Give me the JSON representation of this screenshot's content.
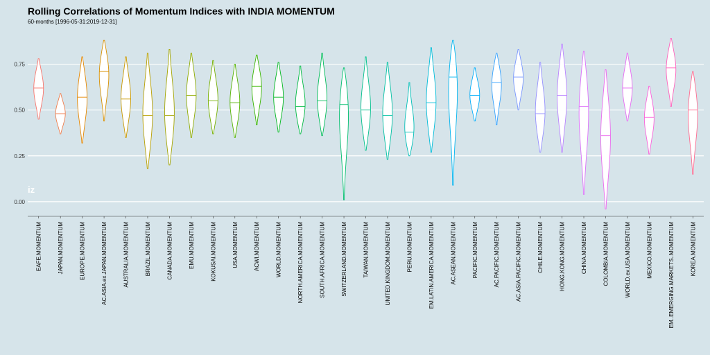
{
  "chart_data": {
    "type": "violin",
    "title": "Rolling Correlations of Momentum Indices with INDIA MOMENTUM",
    "subtitle": "60-months [1996-05-31:2019-12-31]",
    "watermark": "iz",
    "ylim": [
      -0.08,
      0.93
    ],
    "yticks": [
      0.0,
      0.25,
      0.5,
      0.75
    ],
    "ytick_labels": [
      "0.00",
      "0.25",
      "0.50",
      "0.75"
    ],
    "grid": true,
    "series": [
      {
        "name": "EAFE.MOMENTUM",
        "min": 0.45,
        "max": 0.78,
        "median": 0.62,
        "color": "#F8766D"
      },
      {
        "name": "JAPAN.MOMENTUM",
        "min": 0.37,
        "max": 0.59,
        "median": 0.48,
        "color": "#F07E4D"
      },
      {
        "name": "EUROPE.MOMENTUM",
        "min": 0.32,
        "max": 0.79,
        "median": 0.57,
        "color": "#E58700"
      },
      {
        "name": "AC.ASIA.ex.JAPAN.MOMENTUM",
        "min": 0.44,
        "max": 0.88,
        "median": 0.71,
        "color": "#D89000"
      },
      {
        "name": "AUSTRALIA.MOMENTUM",
        "min": 0.35,
        "max": 0.79,
        "median": 0.56,
        "color": "#C99800"
      },
      {
        "name": "BRAZIL.MOMENTUM",
        "min": 0.18,
        "max": 0.81,
        "median": 0.47,
        "color": "#B79F00"
      },
      {
        "name": "CANADA.MOMENTUM",
        "min": 0.2,
        "max": 0.83,
        "median": 0.47,
        "color": "#A3A500"
      },
      {
        "name": "EMU.MOMENTUM",
        "min": 0.35,
        "max": 0.81,
        "median": 0.58,
        "color": "#8EAB00"
      },
      {
        "name": "KOKUSAI.MOMENTUM",
        "min": 0.37,
        "max": 0.77,
        "median": 0.55,
        "color": "#75AF00"
      },
      {
        "name": "USA.MOMENTUM",
        "min": 0.35,
        "max": 0.75,
        "median": 0.54,
        "color": "#55B300"
      },
      {
        "name": "ACWI.MOMENTUM",
        "min": 0.42,
        "max": 0.8,
        "median": 0.63,
        "color": "#39B600"
      },
      {
        "name": "WORLD.MOMENTUM",
        "min": 0.38,
        "max": 0.76,
        "median": 0.57,
        "color": "#00B81F"
      },
      {
        "name": "NORTH.AMERICA.MOMENTUM",
        "min": 0.37,
        "max": 0.74,
        "median": 0.52,
        "color": "#00BA42"
      },
      {
        "name": "SOUTH.AFRICA.MOMENTUM",
        "min": 0.36,
        "max": 0.81,
        "median": 0.55,
        "color": "#00BC59"
      },
      {
        "name": "SWITZERLAND.MOMENTUM",
        "min": 0.01,
        "max": 0.73,
        "median": 0.53,
        "color": "#00BE6D"
      },
      {
        "name": "TAIWAN.MOMENTUM",
        "min": 0.28,
        "max": 0.79,
        "median": 0.5,
        "color": "#00C08B"
      },
      {
        "name": "UNITED.KINGDOM.MOMENTUM",
        "min": 0.23,
        "max": 0.76,
        "median": 0.47,
        "color": "#00C0A3"
      },
      {
        "name": "PERU.MOMENTUM",
        "min": 0.25,
        "max": 0.65,
        "median": 0.38,
        "color": "#00BFB7"
      },
      {
        "name": "EM.LATIN.AMERICA.MOMENTUM",
        "min": 0.27,
        "max": 0.84,
        "median": 0.54,
        "color": "#00BCD8"
      },
      {
        "name": "AC.ASEAN.MOMENTUM",
        "min": 0.09,
        "max": 0.88,
        "median": 0.68,
        "color": "#00B4EF"
      },
      {
        "name": "PACIFIC.MOMENTUM",
        "min": 0.44,
        "max": 0.73,
        "median": 0.58,
        "color": "#00ADFA"
      },
      {
        "name": "AC.PACIFIC.MOMENTUM",
        "min": 0.42,
        "max": 0.81,
        "median": 0.65,
        "color": "#35A2FF"
      },
      {
        "name": "AC.ASIA.PACIFIC.MOMENTUM",
        "min": 0.5,
        "max": 0.83,
        "median": 0.68,
        "color": "#7997FF"
      },
      {
        "name": "CHILE.MOMENTUM",
        "min": 0.27,
        "max": 0.76,
        "median": 0.48,
        "color": "#9590FF"
      },
      {
        "name": "HONG.KONG.MOMENTUM",
        "min": 0.27,
        "max": 0.86,
        "median": 0.58,
        "color": "#B983FF"
      },
      {
        "name": "CHINA.MOMENTUM",
        "min": 0.04,
        "max": 0.82,
        "median": 0.52,
        "color": "#DC71FA"
      },
      {
        "name": "COLOMBIA.MOMENTUM",
        "min": -0.04,
        "max": 0.72,
        "median": 0.36,
        "color": "#EC69EF"
      },
      {
        "name": "WORLD.ex.USA.MOMENTUM",
        "min": 0.44,
        "max": 0.81,
        "median": 0.62,
        "color": "#E76BF3"
      },
      {
        "name": "MEXICO.MOMENTUM",
        "min": 0.26,
        "max": 0.63,
        "median": 0.46,
        "color": "#FA62DB"
      },
      {
        "name": "EM..EMERGING.MARKETS..MOMENTUM",
        "min": 0.52,
        "max": 0.89,
        "median": 0.73,
        "color": "#FF62BC"
      },
      {
        "name": "KOREA.MOMENTUM",
        "min": 0.15,
        "max": 0.71,
        "median": 0.5,
        "color": "#FF6C91"
      }
    ]
  }
}
